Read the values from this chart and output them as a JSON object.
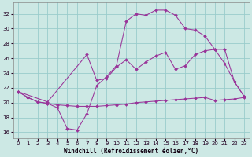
{
  "background_color": "#cce8e4",
  "line_color": "#993399",
  "grid_color": "#99cccc",
  "xlabel": "Windchill (Refroidissement éolien,°C)",
  "yticks": [
    16,
    18,
    20,
    22,
    24,
    26,
    28,
    30,
    32
  ],
  "xticks": [
    0,
    1,
    2,
    3,
    4,
    5,
    6,
    7,
    8,
    9,
    10,
    11,
    12,
    13,
    14,
    15,
    16,
    17,
    18,
    19,
    20,
    21,
    22,
    23
  ],
  "xlim": [
    -0.5,
    23.5
  ],
  "ylim": [
    15.2,
    33.5
  ],
  "line1_x": [
    0,
    1,
    2,
    3,
    4,
    5,
    6,
    7,
    8,
    9,
    10,
    11,
    12,
    13,
    14,
    15,
    16,
    17,
    18,
    19,
    20,
    21,
    22,
    23
  ],
  "line1_y": [
    21.5,
    20.7,
    20.1,
    19.9,
    19.3,
    16.5,
    16.3,
    18.5,
    22.3,
    23.5,
    25.0,
    31.0,
    32.0,
    31.8,
    32.5,
    32.5,
    31.8,
    30.0,
    29.8,
    29.0,
    27.2,
    25.3,
    22.8,
    20.8
  ],
  "line2_x": [
    0,
    1,
    2,
    3,
    4,
    5,
    6,
    7,
    8,
    9,
    10,
    11,
    12,
    13,
    14,
    15,
    16,
    17,
    18,
    19,
    20,
    21,
    22,
    23
  ],
  "line2_y": [
    21.5,
    20.7,
    20.1,
    19.9,
    19.7,
    19.6,
    19.5,
    19.5,
    19.5,
    19.6,
    19.7,
    19.8,
    20.0,
    20.1,
    20.2,
    20.3,
    20.4,
    20.5,
    20.6,
    20.7,
    20.3,
    20.4,
    20.5,
    20.7
  ],
  "line3_x": [
    0,
    3,
    7,
    8,
    9,
    10,
    11,
    12,
    13,
    14,
    15,
    16,
    17,
    18,
    19,
    20,
    21,
    22,
    23
  ],
  "line3_y": [
    21.5,
    20.1,
    26.5,
    23.0,
    23.3,
    24.8,
    25.8,
    24.5,
    25.5,
    26.3,
    26.8,
    24.5,
    25.0,
    26.5,
    27.0,
    27.2,
    27.2,
    22.8,
    20.8
  ]
}
